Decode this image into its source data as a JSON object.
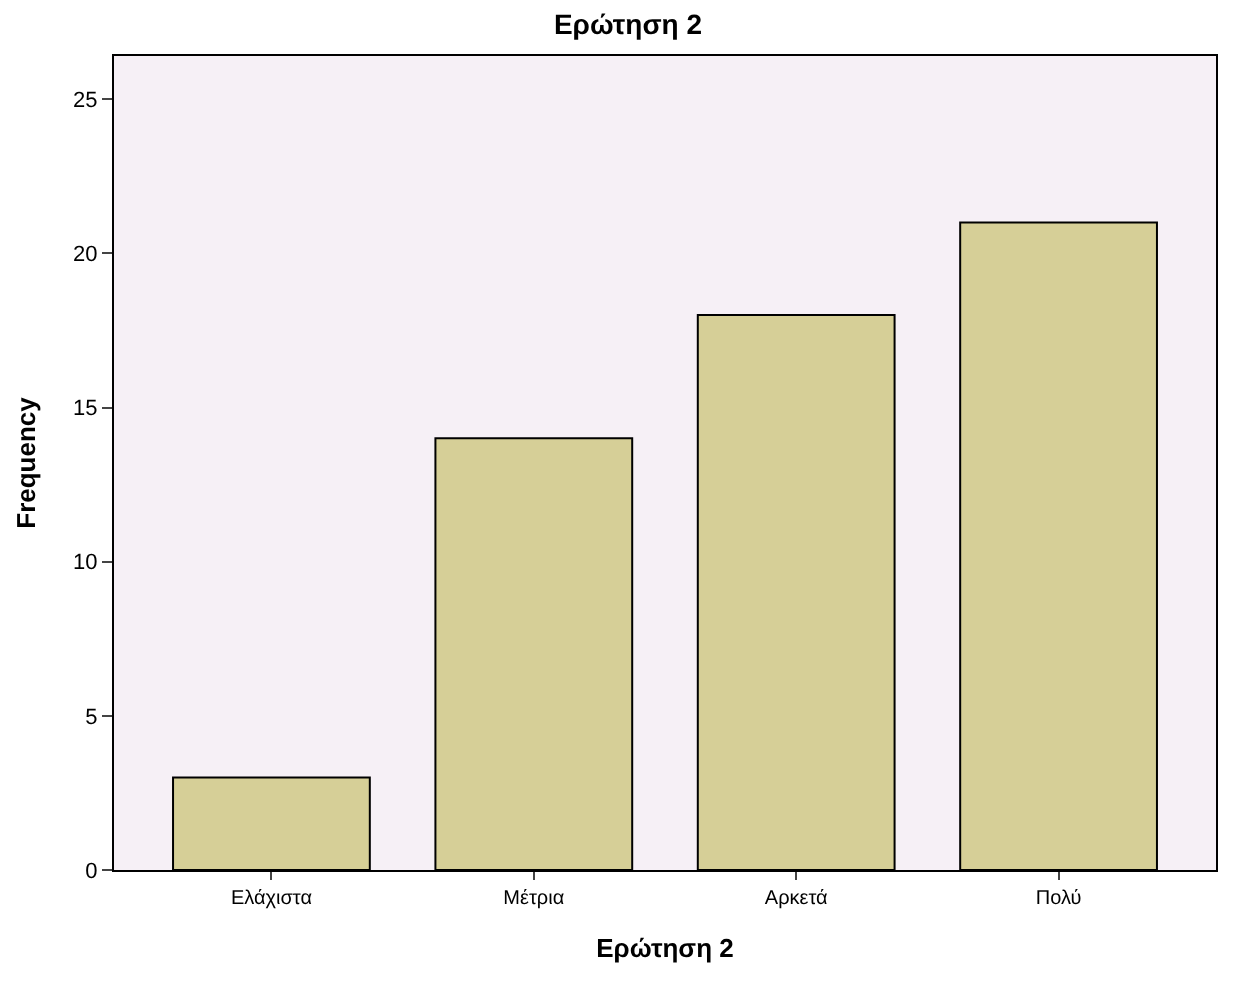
{
  "chart_data": {
    "type": "bar",
    "title": "Ερώτηση 2",
    "xlabel": "Ερώτηση 2",
    "ylabel": "Frequency",
    "categories": [
      "Ελάχιστα",
      "Μέτρια",
      "Αρκετά",
      "Πολύ"
    ],
    "values": [
      3,
      14,
      18,
      21
    ],
    "color": "#d6cf97",
    "ylim": [
      0,
      26.4
    ],
    "yticks": [
      0,
      5,
      10,
      15,
      20,
      25
    ],
    "grid": false
  }
}
